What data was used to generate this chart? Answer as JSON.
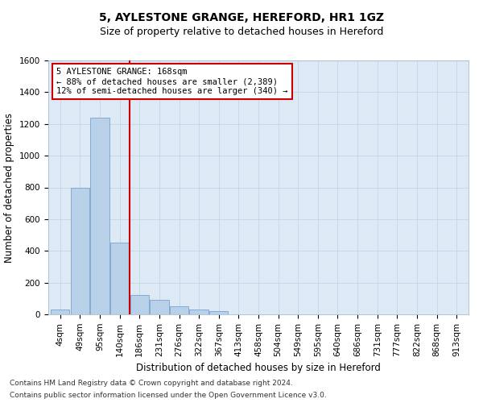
{
  "title": "5, AYLESTONE GRANGE, HEREFORD, HR1 1GZ",
  "subtitle": "Size of property relative to detached houses in Hereford",
  "xlabel": "Distribution of detached houses by size in Hereford",
  "ylabel": "Number of detached properties",
  "footnote1": "Contains HM Land Registry data © Crown copyright and database right 2024.",
  "footnote2": "Contains public sector information licensed under the Open Government Licence v3.0.",
  "annotation_line1": "5 AYLESTONE GRANGE: 168sqm",
  "annotation_line2": "← 88% of detached houses are smaller (2,389)",
  "annotation_line3": "12% of semi-detached houses are larger (340) →",
  "categories": [
    "4sqm",
    "49sqm",
    "95sqm",
    "140sqm",
    "186sqm",
    "231sqm",
    "276sqm",
    "322sqm",
    "367sqm",
    "413sqm",
    "458sqm",
    "504sqm",
    "549sqm",
    "595sqm",
    "640sqm",
    "686sqm",
    "731sqm",
    "777sqm",
    "822sqm",
    "868sqm",
    "913sqm"
  ],
  "values": [
    30,
    800,
    1240,
    450,
    120,
    90,
    50,
    30,
    20,
    0,
    0,
    0,
    0,
    0,
    0,
    0,
    0,
    0,
    0,
    0,
    0
  ],
  "bar_color": "#b8d0e8",
  "bar_edge_color": "#6699cc",
  "vline_color": "#cc0000",
  "vline_x_index": 3.5,
  "annotation_box_edge_color": "#cc0000",
  "background_color": "#ddeaf5",
  "grid_color": "#c5d5e5",
  "ylim": [
    0,
    1600
  ],
  "yticks": [
    0,
    200,
    400,
    600,
    800,
    1000,
    1200,
    1400,
    1600
  ],
  "title_fontsize": 10,
  "subtitle_fontsize": 9,
  "xlabel_fontsize": 8.5,
  "ylabel_fontsize": 8.5,
  "tick_fontsize": 7.5,
  "annotation_fontsize": 7.5,
  "footnote_fontsize": 6.5
}
